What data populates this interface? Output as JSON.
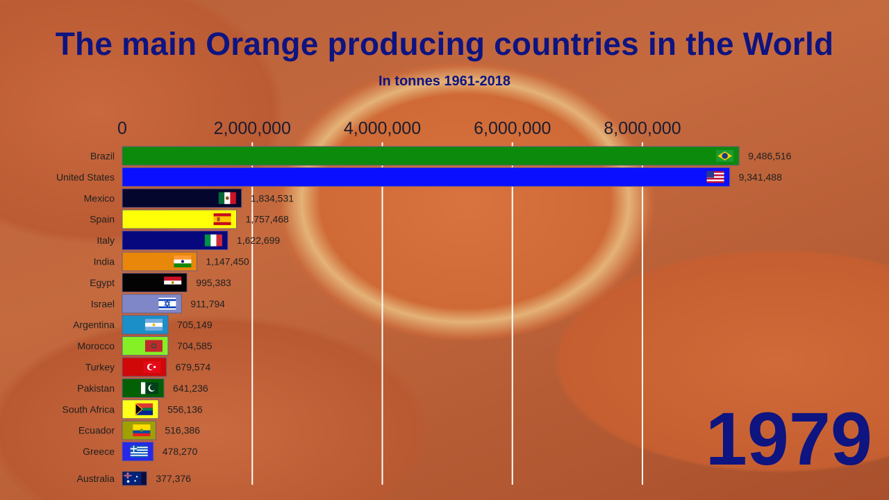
{
  "title": "The main Orange producing countries in the World",
  "subtitle": "In tonnes 1961-2018",
  "year": "1979",
  "chart_data": {
    "type": "bar",
    "orientation": "horizontal",
    "title": "The main Orange producing countries in the World",
    "subtitle": "In tonnes 1961-2018",
    "xlim": [
      0,
      9500000
    ],
    "ticks": [
      0,
      2000000,
      4000000,
      6000000,
      8000000
    ],
    "tick_labels": [
      "0",
      "2,000,000",
      "4,000,000",
      "6,000,000",
      "8,000,000"
    ],
    "grid": "vertical",
    "categories": [
      "Brazil",
      "United States",
      "Mexico",
      "Spain",
      "Italy",
      "India",
      "Egypt",
      "Israel",
      "Argentina",
      "Morocco",
      "Turkey",
      "Pakistan",
      "South Africa",
      "Ecuador",
      "Greece",
      "Australia"
    ],
    "values": [
      9486516,
      9341488,
      1834531,
      1757468,
      1622699,
      1147450,
      995383,
      911794,
      705149,
      704585,
      679574,
      641236,
      556136,
      516386,
      478270,
      377376
    ],
    "value_labels": [
      "9,486,516",
      "9,341,488",
      "1,834,531",
      "1,757,468",
      "1,622,699",
      "1,147,450",
      "995,383",
      "911,794",
      "705,149",
      "704,585",
      "679,574",
      "641,236",
      "556,136",
      "516,386",
      "478,270",
      "377,376"
    ],
    "colors": [
      "#0c8a0c",
      "#0a10ff",
      "#05062e",
      "#ffff08",
      "#08087e",
      "#e8870a",
      "#030303",
      "#7f87c8",
      "#1b8fc8",
      "#86f026",
      "#d00808",
      "#046004",
      "#ffff1a",
      "#a0a000",
      "#2828e8",
      "#0c0c3a"
    ],
    "flags": [
      "brazil-flag",
      "usa-flag",
      "mexico-flag",
      "spain-flag",
      "italy-flag",
      "india-flag",
      "egypt-flag",
      "israel-flag",
      "argentina-flag",
      "morocco-flag",
      "turkey-flag",
      "pakistan-flag",
      "south-africa-flag",
      "ecuador-flag",
      "greece-flag",
      "australia-flag"
    ]
  }
}
